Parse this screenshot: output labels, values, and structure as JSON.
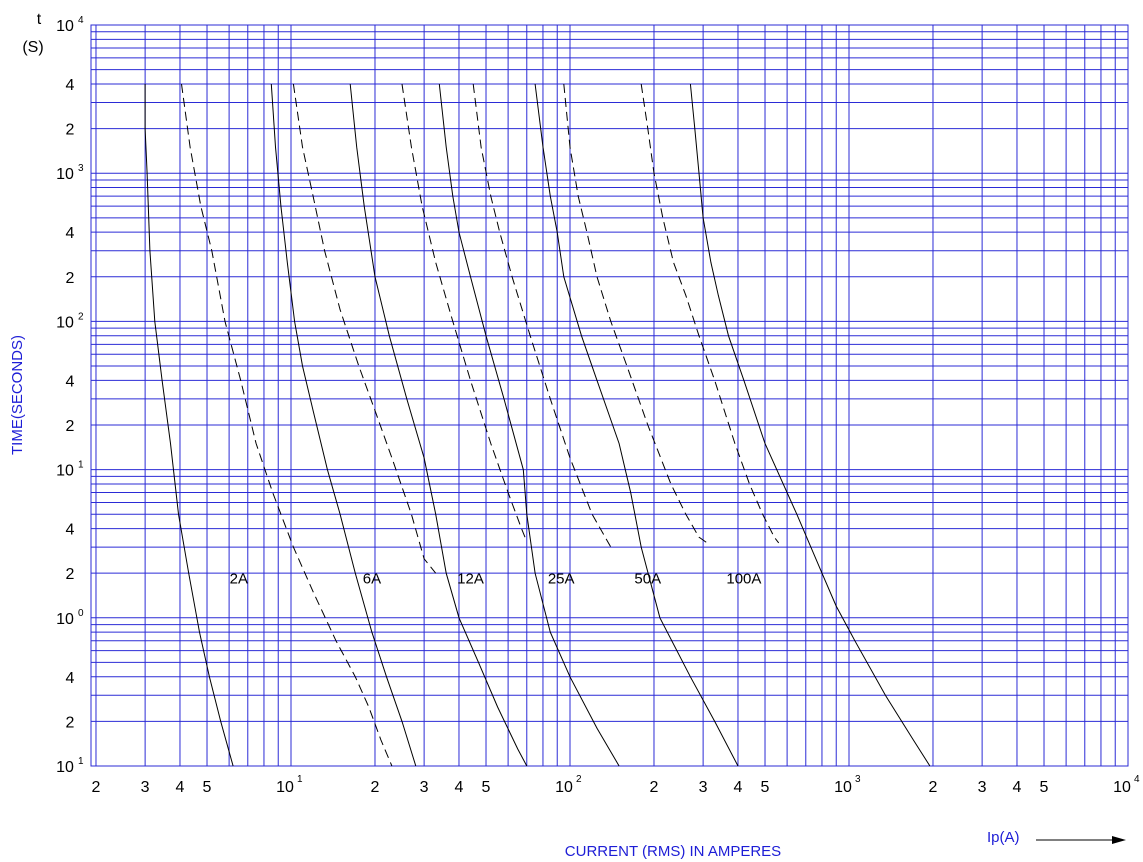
{
  "chart_data": {
    "type": "line",
    "x_scale": "log",
    "y_scale": "log",
    "xlim": [
      1.8,
      10000
    ],
    "ylim": [
      0.1,
      10000
    ],
    "grid": true,
    "xlabel": "CURRENT (RMS)  IN  AMPERES",
    "ylabel": "TIME(SECONDS)",
    "x_unit_label": "Ip(A)",
    "y_top_label": "t",
    "y_unit_label": "(S)",
    "y_ticks": [
      {
        "value": 10000,
        "base": "10",
        "exp": "4"
      },
      {
        "value": 4000,
        "base": "4",
        "exp": ""
      },
      {
        "value": 2000,
        "base": "2",
        "exp": ""
      },
      {
        "value": 1000,
        "base": "10",
        "exp": "3"
      },
      {
        "value": 400,
        "base": "4",
        "exp": ""
      },
      {
        "value": 200,
        "base": "2",
        "exp": ""
      },
      {
        "value": 100,
        "base": "10",
        "exp": "2"
      },
      {
        "value": 40,
        "base": "4",
        "exp": ""
      },
      {
        "value": 20,
        "base": "2",
        "exp": ""
      },
      {
        "value": 10,
        "base": "10",
        "exp": "1"
      },
      {
        "value": 4,
        "base": "4",
        "exp": ""
      },
      {
        "value": 2,
        "base": "2",
        "exp": ""
      },
      {
        "value": 1,
        "base": "10",
        "exp": "0"
      },
      {
        "value": 0.4,
        "base": "4",
        "exp": ""
      },
      {
        "value": 0.2,
        "base": "2",
        "exp": ""
      },
      {
        "value": 0.1,
        "base": "10",
        "exp": "1"
      }
    ],
    "x_ticks": [
      {
        "value": 2,
        "base": "2",
        "exp": ""
      },
      {
        "value": 3,
        "base": "3",
        "exp": ""
      },
      {
        "value": 4,
        "base": "4",
        "exp": ""
      },
      {
        "value": 5,
        "base": "5",
        "exp": ""
      },
      {
        "value": 10,
        "base": "10",
        "exp": "1"
      },
      {
        "value": 20,
        "base": "2",
        "exp": ""
      },
      {
        "value": 30,
        "base": "3",
        "exp": ""
      },
      {
        "value": 40,
        "base": "4",
        "exp": ""
      },
      {
        "value": 50,
        "base": "5",
        "exp": ""
      },
      {
        "value": 100,
        "base": "10",
        "exp": "2"
      },
      {
        "value": 200,
        "base": "2",
        "exp": ""
      },
      {
        "value": 300,
        "base": "3",
        "exp": ""
      },
      {
        "value": 400,
        "base": "4",
        "exp": ""
      },
      {
        "value": 500,
        "base": "5",
        "exp": ""
      },
      {
        "value": 1000,
        "base": "10",
        "exp": "3"
      },
      {
        "value": 2000,
        "base": "2",
        "exp": ""
      },
      {
        "value": 3000,
        "base": "3",
        "exp": ""
      },
      {
        "value": 4000,
        "base": "4",
        "exp": ""
      },
      {
        "value": 5000,
        "base": "5",
        "exp": ""
      },
      {
        "value": 10000,
        "base": "10",
        "exp": "4"
      }
    ],
    "series": [
      {
        "name": "2A",
        "label_at": [
          6.5,
          1.7
        ],
        "solid": [
          [
            3.0,
            4000
          ],
          [
            3.0,
            2000
          ],
          [
            3.05,
            1000
          ],
          [
            3.12,
            300
          ],
          [
            3.25,
            100
          ],
          [
            3.45,
            40
          ],
          [
            3.7,
            15
          ],
          [
            3.95,
            5
          ],
          [
            4.3,
            2
          ],
          [
            4.7,
            0.8
          ],
          [
            5.1,
            0.4
          ],
          [
            5.6,
            0.2
          ],
          [
            6.2,
            0.1
          ]
        ],
        "dashed": [
          [
            4.05,
            4000
          ],
          [
            4.35,
            1500
          ],
          [
            4.75,
            600
          ],
          [
            5.2,
            300
          ],
          [
            5.8,
            100
          ],
          [
            6.6,
            40
          ],
          [
            7.5,
            15
          ],
          [
            8.6,
            7
          ],
          [
            10.2,
            3
          ],
          [
            12.0,
            1.5
          ],
          [
            14.5,
            0.7
          ],
          [
            17.0,
            0.4
          ],
          [
            19.0,
            0.25
          ],
          [
            21.0,
            0.15
          ],
          [
            23.0,
            0.1
          ]
        ]
      },
      {
        "name": "6A",
        "label_at": [
          19.5,
          1.7
        ],
        "solid": [
          [
            8.5,
            4000
          ],
          [
            8.8,
            1500
          ],
          [
            9.2,
            600
          ],
          [
            9.7,
            250
          ],
          [
            10.3,
            100
          ],
          [
            11.0,
            50
          ],
          [
            12.0,
            25
          ],
          [
            13.5,
            10
          ],
          [
            15.0,
            5
          ],
          [
            17.0,
            2
          ],
          [
            19.5,
            0.8
          ],
          [
            22.0,
            0.4
          ],
          [
            25.0,
            0.2
          ],
          [
            28.0,
            0.1
          ]
        ],
        "dashed": [
          [
            10.2,
            4000
          ],
          [
            11.0,
            1500
          ],
          [
            12.0,
            700
          ],
          [
            13.2,
            300
          ],
          [
            15.0,
            120
          ],
          [
            17.5,
            50
          ],
          [
            20.0,
            25
          ],
          [
            23.0,
            12
          ],
          [
            27.0,
            5
          ],
          [
            30.0,
            2.5
          ],
          [
            33.0,
            2
          ]
        ]
      },
      {
        "name": "12A",
        "label_at": [
          44.0,
          1.7
        ],
        "solid": [
          [
            16.3,
            4000
          ],
          [
            17.2,
            1500
          ],
          [
            18.3,
            600
          ],
          [
            20.0,
            200
          ],
          [
            22.5,
            80
          ],
          [
            26.0,
            30
          ],
          [
            30.0,
            12
          ],
          [
            33.0,
            5
          ],
          [
            36.0,
            2
          ],
          [
            40.0,
            1
          ],
          [
            47.0,
            0.5
          ],
          [
            55.0,
            0.25
          ],
          [
            65.0,
            0.13
          ],
          [
            70.0,
            0.1
          ]
        ],
        "dashed": [
          [
            25.0,
            4000
          ],
          [
            27.0,
            1500
          ],
          [
            29.5,
            600
          ],
          [
            33.0,
            250
          ],
          [
            38.0,
            100
          ],
          [
            44.0,
            40
          ],
          [
            52.0,
            15
          ],
          [
            60.0,
            7
          ],
          [
            67.0,
            4
          ],
          [
            69.0,
            3.5
          ]
        ]
      },
      {
        "name": "25A",
        "label_at": [
          93.0,
          1.7
        ],
        "solid": [
          [
            34.0,
            4000
          ],
          [
            36.0,
            1500
          ],
          [
            38.0,
            700
          ],
          [
            40.0,
            400
          ],
          [
            44.0,
            200
          ],
          [
            50.0,
            80
          ],
          [
            58.0,
            30
          ],
          [
            68.0,
            10
          ],
          [
            70.0,
            5
          ],
          [
            75.0,
            2
          ],
          [
            85.0,
            0.8
          ],
          [
            100.0,
            0.4
          ],
          [
            125.0,
            0.18
          ],
          [
            150.0,
            0.1
          ]
        ],
        "dashed": [
          [
            45.0,
            4000
          ],
          [
            48.0,
            1500
          ],
          [
            52.0,
            700
          ],
          [
            56.0,
            400
          ],
          [
            62.0,
            200
          ],
          [
            72.0,
            80
          ],
          [
            85.0,
            30
          ],
          [
            100.0,
            12
          ],
          [
            120.0,
            5
          ],
          [
            140.0,
            3
          ]
        ]
      },
      {
        "name": "50A",
        "label_at": [
          190.0,
          1.7
        ],
        "solid": [
          [
            75.0,
            4000
          ],
          [
            80.0,
            1500
          ],
          [
            85.0,
            700
          ],
          [
            90.0,
            400
          ],
          [
            95.0,
            200
          ],
          [
            110.0,
            80
          ],
          [
            125.0,
            40
          ],
          [
            150.0,
            15
          ],
          [
            165.0,
            7
          ],
          [
            180.0,
            3
          ],
          [
            210.0,
            1
          ],
          [
            270.0,
            0.4
          ],
          [
            330.0,
            0.2
          ],
          [
            400.0,
            0.1
          ]
        ],
        "dashed": [
          [
            95.0,
            4000
          ],
          [
            100.0,
            1500
          ],
          [
            107.0,
            700
          ],
          [
            115.0,
            400
          ],
          [
            125.0,
            200
          ],
          [
            140.0,
            100
          ],
          [
            160.0,
            50
          ],
          [
            190.0,
            20
          ],
          [
            230.0,
            8
          ],
          [
            260.0,
            5
          ],
          [
            290.0,
            3.5
          ],
          [
            310.0,
            3.2
          ]
        ]
      },
      {
        "name": "100A",
        "label_at": [
          420.0,
          1.7
        ],
        "solid": [
          [
            270.0,
            4000
          ],
          [
            280.0,
            2000
          ],
          [
            290.0,
            1000
          ],
          [
            300.0,
            500
          ],
          [
            320.0,
            250
          ],
          [
            340.0,
            150
          ],
          [
            370.0,
            80
          ],
          [
            420.0,
            40
          ],
          [
            500.0,
            15
          ],
          [
            650.0,
            5
          ],
          [
            800.0,
            2
          ],
          [
            900.0,
            1.2
          ],
          [
            1050.0,
            0.7
          ],
          [
            1350.0,
            0.3
          ],
          [
            1700.0,
            0.15
          ],
          [
            1950.0,
            0.1
          ]
        ],
        "dashed": [
          [
            180.0,
            4000
          ],
          [
            190.0,
            2000
          ],
          [
            200.0,
            1000
          ],
          [
            215.0,
            500
          ],
          [
            235.0,
            250
          ],
          [
            260.0,
            150
          ],
          [
            290.0,
            80
          ],
          [
            330.0,
            40
          ],
          [
            390.0,
            15
          ],
          [
            440.0,
            8
          ],
          [
            490.0,
            5
          ],
          [
            540.0,
            3.5
          ],
          [
            560.0,
            3.2
          ]
        ]
      }
    ]
  }
}
